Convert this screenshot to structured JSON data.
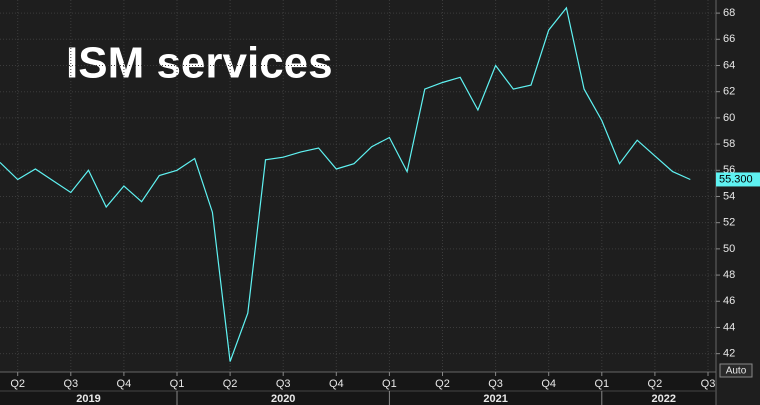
{
  "chart_data": {
    "type": "line",
    "title": "ISM services",
    "categories": [
      null,
      "Q2",
      null,
      null,
      "Q3",
      null,
      null,
      "Q4",
      null,
      null,
      "Q1",
      null,
      null,
      "Q2",
      null,
      null,
      "Q3",
      null,
      null,
      "Q4",
      null,
      null,
      "Q1",
      null,
      null,
      "Q2",
      null,
      null,
      "Q3",
      null,
      null,
      "Q4",
      null,
      null,
      "Q1",
      null,
      null,
      "Q2",
      null,
      null,
      "Q3"
    ],
    "years": [
      "2019",
      "2020",
      "2021",
      "2022"
    ],
    "series": [
      {
        "name": "ISM services",
        "color": "#5ff2f2",
        "values": [
          56.6,
          55.3,
          56.1,
          55.2,
          54.3,
          56.0,
          53.2,
          54.8,
          53.6,
          55.6,
          56.0,
          56.9,
          52.8,
          41.4,
          45.1,
          56.8,
          57.0,
          57.4,
          57.7,
          56.1,
          56.5,
          57.8,
          58.5,
          55.9,
          62.2,
          62.7,
          63.1,
          60.6,
          64.0,
          62.2,
          62.5,
          66.7,
          68.4,
          62.2,
          59.8,
          56.5,
          58.3,
          57.1,
          55.9,
          55.3,
          null
        ]
      }
    ],
    "last_value_label": "55.300",
    "ylim": [
      40.6,
      69
    ],
    "yticks": [
      42,
      44,
      46,
      48,
      50,
      52,
      54,
      56,
      58,
      60,
      62,
      64,
      66,
      68
    ],
    "grid": true,
    "scale_button": "Auto"
  }
}
